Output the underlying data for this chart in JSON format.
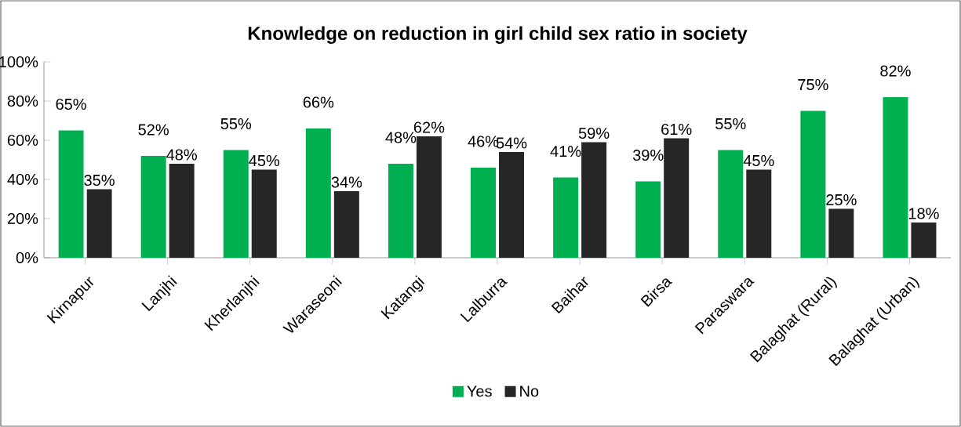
{
  "chart_data": {
    "type": "bar",
    "title": "Knowledge on reduction in girl child sex ratio in society",
    "categories": [
      "Kirnapur",
      "Lanjhi",
      "Kherlanjhi",
      "Waraseoni",
      "Katangi",
      "Lalburra",
      "Baihar",
      "Birsa",
      "Paraswara",
      "Balaghat (Rural)",
      "Balaghat (Urban)"
    ],
    "series": [
      {
        "name": "Yes",
        "color": "#00b050",
        "values": [
          65,
          52,
          55,
          66,
          48,
          46,
          41,
          39,
          55,
          75,
          82
        ],
        "value_labels": [
          "65%",
          "52%",
          "55%",
          "66%",
          "48%",
          "46%",
          "41%",
          "39%",
          "55%",
          "75%",
          "82%"
        ]
      },
      {
        "name": "No",
        "color": "#262626",
        "values": [
          35,
          48,
          45,
          34,
          62,
          54,
          59,
          61,
          45,
          25,
          18
        ],
        "value_labels": [
          "35%",
          "48%",
          "45%",
          "34%",
          "62%",
          "54%",
          "59%",
          "61%",
          "45%",
          "25%",
          "18%"
        ]
      }
    ],
    "ylim": [
      0,
      100
    ],
    "yticks": [
      {
        "value": 0,
        "label": "0%"
      },
      {
        "value": 20,
        "label": "20%"
      },
      {
        "value": 40,
        "label": "40%"
      },
      {
        "value": 60,
        "label": "60%"
      },
      {
        "value": 80,
        "label": "80%"
      },
      {
        "value": 100,
        "label": "100%"
      }
    ],
    "legend": "bottom"
  }
}
